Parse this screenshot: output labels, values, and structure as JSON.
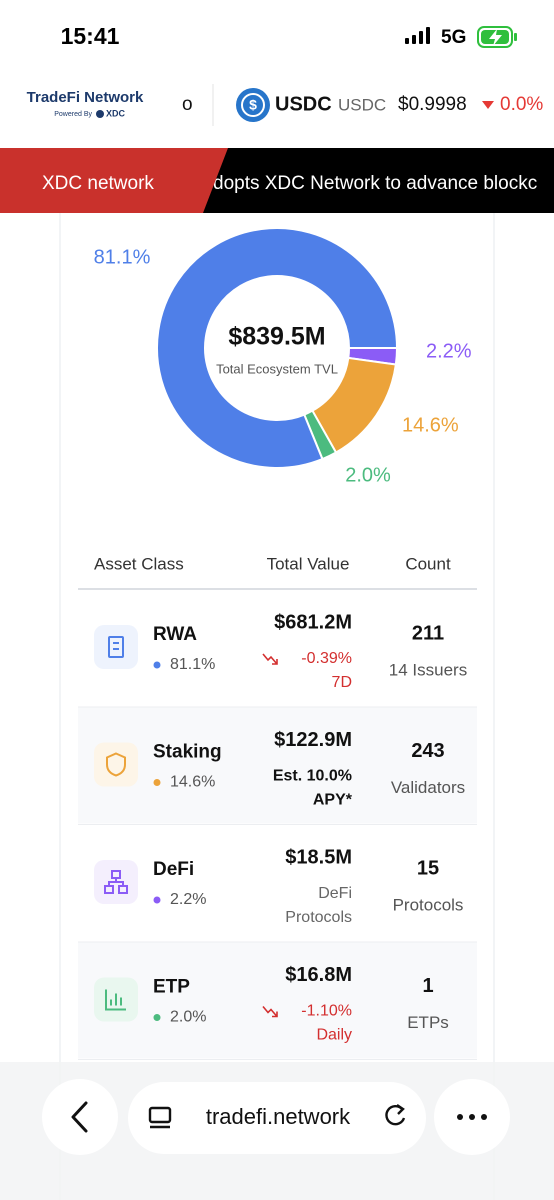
{
  "status_bar": {
    "time": "15:41",
    "network": "5G"
  },
  "header": {
    "brand": "TradeFi Network",
    "powered_by": "Powered By",
    "partner": "XDC",
    "ticker": {
      "prev_tail": "o",
      "symbol": "USDC",
      "ticker": "USDC",
      "price": "$0.9998",
      "change": "0.0%"
    }
  },
  "banner": {
    "label": "XDC network",
    "headline": "dopts XDC Network to advance blockc"
  },
  "chart_data": {
    "type": "pie",
    "donut": true,
    "center_value": "$839.5M",
    "center_label": "Total Ecosystem TVL",
    "categories": [
      "DeFi",
      "Staking",
      "ETP",
      "RWA"
    ],
    "values": [
      2.2,
      14.6,
      2.0,
      81.1
    ],
    "value_labels": [
      "2.2%",
      "14.6%",
      "2.0%",
      "81.1%"
    ],
    "colors": [
      "#8b5cf6",
      "#eca33a",
      "#4cbb7f",
      "#4f7fe8"
    ]
  },
  "table": {
    "headers": [
      "Asset Class",
      "Total Value",
      "Count"
    ],
    "rows": [
      {
        "name": "RWA",
        "share": "81.1%",
        "value": "$681.2M",
        "detail": [
          "-0.39%",
          "7D"
        ],
        "count": "211",
        "count_label": "14 Issuers"
      },
      {
        "name": "Staking",
        "share": "14.6%",
        "value": "$122.9M",
        "detail": [
          "Est. 10.0%",
          "APY*"
        ],
        "count": "243",
        "count_label": "Validators"
      },
      {
        "name": "DeFi",
        "share": "2.2%",
        "value": "$18.5M",
        "detail": [
          "DeFi",
          "Protocols"
        ],
        "count": "15",
        "count_label": "Protocols"
      },
      {
        "name": "ETP",
        "share": "2.0%",
        "value": "$16.8M",
        "detail": [
          "-1.10%",
          "Daily"
        ],
        "count": "1",
        "count_label": "ETPs"
      }
    ]
  },
  "browser": {
    "url": "tradefi.network"
  }
}
